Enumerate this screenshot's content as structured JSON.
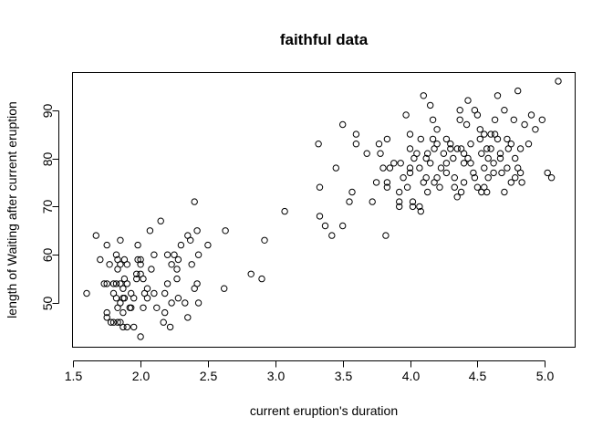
{
  "chart_data": {
    "type": "scatter",
    "title": "faithful data",
    "xlabel": "current eruption's duration",
    "ylabel": "length of Waiting after current eruption",
    "xlim": [
      1.6,
      5.1
    ],
    "ylim": [
      43,
      96
    ],
    "x_ticks": [
      1.5,
      2.0,
      2.5,
      3.0,
      3.5,
      4.0,
      4.5,
      5.0
    ],
    "x_tick_labels": [
      "1.5",
      "2.0",
      "2.5",
      "3.0",
      "3.5",
      "4.0",
      "4.5",
      "5.0"
    ],
    "y_ticks": [
      50,
      60,
      70,
      80,
      90
    ],
    "y_tick_labels": [
      "50",
      "60",
      "70",
      "80",
      "90"
    ],
    "grid": false,
    "marker": "open-circle",
    "points": [
      [
        1.6,
        52
      ],
      [
        1.67,
        64
      ],
      [
        1.7,
        59
      ],
      [
        1.73,
        54
      ],
      [
        1.75,
        54
      ],
      [
        1.75,
        62
      ],
      [
        1.75,
        47
      ],
      [
        1.75,
        48
      ],
      [
        1.77,
        58
      ],
      [
        1.78,
        46
      ],
      [
        1.8,
        52
      ],
      [
        1.8,
        54
      ],
      [
        1.8,
        46
      ],
      [
        1.82,
        60
      ],
      [
        1.82,
        51
      ],
      [
        1.82,
        54
      ],
      [
        1.83,
        46
      ],
      [
        1.83,
        59
      ],
      [
        1.83,
        49
      ],
      [
        1.83,
        57
      ],
      [
        1.85,
        54
      ],
      [
        1.85,
        63
      ],
      [
        1.85,
        46
      ],
      [
        1.85,
        58
      ],
      [
        1.85,
        50
      ],
      [
        1.87,
        45
      ],
      [
        1.87,
        51
      ],
      [
        1.87,
        53
      ],
      [
        1.87,
        48
      ],
      [
        1.88,
        59
      ],
      [
        1.88,
        51
      ],
      [
        1.88,
        55
      ],
      [
        1.9,
        58
      ],
      [
        1.9,
        45
      ],
      [
        1.9,
        54
      ],
      [
        1.92,
        49
      ],
      [
        1.93,
        49
      ],
      [
        1.93,
        52
      ],
      [
        1.95,
        51
      ],
      [
        1.95,
        45
      ],
      [
        1.97,
        56
      ],
      [
        1.97,
        55
      ],
      [
        1.98,
        59
      ],
      [
        1.98,
        62
      ],
      [
        2.0,
        59
      ],
      [
        2.0,
        43
      ],
      [
        2.0,
        58
      ],
      [
        2.0,
        56
      ],
      [
        2.02,
        49
      ],
      [
        2.02,
        55
      ],
      [
        2.03,
        52
      ],
      [
        2.05,
        53
      ],
      [
        2.05,
        51
      ],
      [
        2.07,
        65
      ],
      [
        2.08,
        57
      ],
      [
        2.1,
        52
      ],
      [
        2.1,
        60
      ],
      [
        2.12,
        49
      ],
      [
        2.15,
        67
      ],
      [
        2.17,
        46
      ],
      [
        2.18,
        48
      ],
      [
        2.18,
        52
      ],
      [
        2.2,
        54
      ],
      [
        2.2,
        60
      ],
      [
        2.22,
        45
      ],
      [
        2.23,
        50
      ],
      [
        2.23,
        58
      ],
      [
        2.25,
        60
      ],
      [
        2.27,
        55
      ],
      [
        2.27,
        57
      ],
      [
        2.28,
        51
      ],
      [
        2.28,
        59
      ],
      [
        2.3,
        62
      ],
      [
        2.33,
        50
      ],
      [
        2.35,
        47
      ],
      [
        2.35,
        64
      ],
      [
        2.37,
        63
      ],
      [
        2.38,
        58
      ],
      [
        2.4,
        71
      ],
      [
        2.4,
        53
      ],
      [
        2.42,
        54
      ],
      [
        2.42,
        65
      ],
      [
        2.43,
        50
      ],
      [
        2.43,
        60
      ],
      [
        2.5,
        62
      ],
      [
        2.62,
        53
      ],
      [
        2.63,
        65
      ],
      [
        2.82,
        56
      ],
      [
        2.9,
        55
      ],
      [
        2.92,
        63
      ],
      [
        3.07,
        69
      ],
      [
        3.32,
        83
      ],
      [
        3.33,
        74
      ],
      [
        3.33,
        68
      ],
      [
        3.37,
        66
      ],
      [
        3.42,
        64
      ],
      [
        3.45,
        78
      ],
      [
        3.5,
        87
      ],
      [
        3.5,
        66
      ],
      [
        3.55,
        71
      ],
      [
        3.57,
        73
      ],
      [
        3.6,
        83
      ],
      [
        3.6,
        85
      ],
      [
        3.68,
        81
      ],
      [
        3.72,
        71
      ],
      [
        3.75,
        75
      ],
      [
        3.77,
        83
      ],
      [
        3.78,
        81
      ],
      [
        3.8,
        78
      ],
      [
        3.82,
        64
      ],
      [
        3.83,
        84
      ],
      [
        3.83,
        75
      ],
      [
        3.83,
        74
      ],
      [
        3.85,
        78
      ],
      [
        3.88,
        79
      ],
      [
        3.92,
        70
      ],
      [
        3.92,
        71
      ],
      [
        3.93,
        79
      ],
      [
        3.95,
        76
      ],
      [
        3.97,
        89
      ],
      [
        3.98,
        74
      ],
      [
        4.0,
        78
      ],
      [
        4.0,
        77
      ],
      [
        4.0,
        85
      ],
      [
        4.0,
        82
      ],
      [
        4.02,
        70
      ],
      [
        4.02,
        71
      ],
      [
        4.03,
        80
      ],
      [
        4.05,
        81
      ],
      [
        4.07,
        70
      ],
      [
        4.08,
        69
      ],
      [
        4.08,
        84
      ],
      [
        4.1,
        93
      ],
      [
        4.1,
        75
      ],
      [
        4.12,
        76
      ],
      [
        4.12,
        80
      ],
      [
        4.13,
        81
      ],
      [
        4.13,
        73
      ],
      [
        4.15,
        91
      ],
      [
        4.15,
        79
      ],
      [
        4.17,
        84
      ],
      [
        4.17,
        88
      ],
      [
        4.18,
        75
      ],
      [
        4.2,
        86
      ],
      [
        4.2,
        76
      ],
      [
        4.2,
        83
      ],
      [
        4.22,
        74
      ],
      [
        4.23,
        78
      ],
      [
        4.25,
        81
      ],
      [
        4.27,
        77
      ],
      [
        4.27,
        79
      ],
      [
        4.3,
        83
      ],
      [
        4.3,
        82
      ],
      [
        4.32,
        80
      ],
      [
        4.33,
        74
      ],
      [
        4.35,
        72
      ],
      [
        4.35,
        82
      ],
      [
        4.37,
        90
      ],
      [
        4.37,
        88
      ],
      [
        4.38,
        73
      ],
      [
        4.38,
        82
      ],
      [
        4.4,
        79
      ],
      [
        4.4,
        75
      ],
      [
        4.42,
        87
      ],
      [
        4.43,
        92
      ],
      [
        4.45,
        79
      ],
      [
        4.45,
        83
      ],
      [
        4.47,
        77
      ],
      [
        4.48,
        90
      ],
      [
        4.5,
        89
      ],
      [
        4.5,
        74
      ],
      [
        4.52,
        84
      ],
      [
        4.53,
        73
      ],
      [
        4.53,
        81
      ],
      [
        4.55,
        85
      ],
      [
        4.55,
        78
      ],
      [
        4.57,
        73
      ],
      [
        4.58,
        80
      ],
      [
        4.58,
        76
      ],
      [
        4.6,
        85
      ],
      [
        4.6,
        82
      ],
      [
        4.62,
        77
      ],
      [
        4.63,
        85
      ],
      [
        4.63,
        88
      ],
      [
        4.65,
        93
      ],
      [
        4.67,
        80
      ],
      [
        4.67,
        81
      ],
      [
        4.68,
        77
      ],
      [
        4.7,
        73
      ],
      [
        4.7,
        90
      ],
      [
        4.72,
        84
      ],
      [
        4.73,
        82
      ],
      [
        4.75,
        75
      ],
      [
        4.77,
        88
      ],
      [
        4.78,
        76
      ],
      [
        4.78,
        80
      ],
      [
        4.8,
        94
      ],
      [
        4.8,
        78
      ],
      [
        4.82,
        77
      ],
      [
        4.82,
        82
      ],
      [
        4.83,
        75
      ],
      [
        4.85,
        87
      ],
      [
        4.88,
        83
      ],
      [
        4.9,
        89
      ],
      [
        4.93,
        86
      ],
      [
        4.98,
        88
      ],
      [
        5.02,
        77
      ],
      [
        5.05,
        76
      ],
      [
        5.1,
        96
      ],
      [
        4.43,
        80
      ],
      [
        4.52,
        86
      ],
      [
        4.62,
        79
      ],
      [
        4.72,
        78
      ],
      [
        4.48,
        76
      ],
      [
        4.57,
        82
      ],
      [
        4.27,
        84
      ],
      [
        4.07,
        78
      ],
      [
        3.92,
        73
      ],
      [
        4.18,
        82
      ],
      [
        4.33,
        76
      ],
      [
        4.65,
        84
      ],
      [
        4.55,
        74
      ],
      [
        4.75,
        83
      ],
      [
        4.4,
        81
      ]
    ]
  }
}
